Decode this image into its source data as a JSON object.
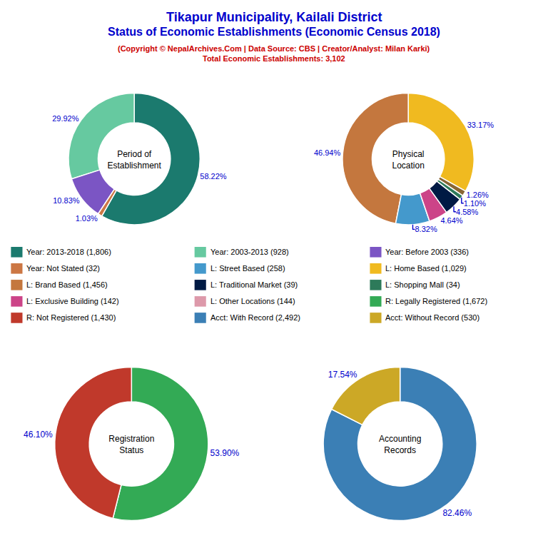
{
  "title": [
    "Tikapur Municipality, Kailali District",
    "Status of Economic Establishments (Economic Census 2018)"
  ],
  "title_color": "#0000CC",
  "subtitle": [
    "(Copyright © NepalArchives.Com | Data Source: CBS | Creator/Analyst: Milan Karki)",
    "Total Economic Establishments: 3,102"
  ],
  "subtitle_color": "#CC0000",
  "chart_data": [
    {
      "type": "pie",
      "title": "Period of\nEstablishment",
      "values": [
        58.22,
        29.92,
        10.83,
        1.03
      ],
      "colors": [
        "#1B7A6E",
        "#66C9A0",
        "#7B55C4",
        "#CC7744"
      ],
      "value_labels": [
        "58.22%",
        "29.92%",
        "10.83%",
        "1.03%"
      ],
      "data_labels": true,
      "label_color": "#0000CC"
    },
    {
      "type": "pie",
      "title": "Physical\nLocation",
      "values": [
        33.17,
        46.94,
        8.32,
        4.64,
        4.58,
        1.1,
        1.26
      ],
      "colors": [
        "#F0BA20",
        "#C4773E",
        "#4499CC",
        "#CC4488",
        "#001A44",
        "#2D7A5A",
        "#886633"
      ],
      "value_labels": [
        "33.17%",
        "46.94%",
        "8.32%",
        "4.64%",
        "4.58%",
        "1.10%",
        "1.26%"
      ],
      "data_labels": true,
      "label_color": "#0000CC"
    },
    {
      "type": "pie",
      "title": "Registration\nStatus",
      "values": [
        53.9,
        46.1
      ],
      "colors": [
        "#33AA55",
        "#C0392B"
      ],
      "value_labels": [
        "53.90%",
        "46.10%"
      ],
      "data_labels": true,
      "label_color": "#0000CC"
    },
    {
      "type": "pie",
      "title": "Accounting\nRecords",
      "values": [
        82.46,
        17.54
      ],
      "colors": [
        "#3B7FB5",
        "#CCA826"
      ],
      "value_labels": [
        "82.46%",
        "17.54%"
      ],
      "data_labels": true,
      "label_color": "#0000CC"
    }
  ],
  "legend_entries": [
    [
      {
        "label": "Year: 2013-2018 (1,806)",
        "color": "#1B7A6E"
      },
      {
        "label": "Year: 2003-2013 (928)",
        "color": "#66C9A0"
      },
      {
        "label": "Year: Before 2003 (336)",
        "color": "#7B55C4"
      }
    ],
    [
      {
        "label": "Year: Not Stated (32)",
        "color": "#CC7744"
      },
      {
        "label": "L: Street Based (258)",
        "color": "#4499CC"
      },
      {
        "label": "L: Home Based (1,029)",
        "color": "#F0BA20"
      }
    ],
    [
      {
        "label": "L: Brand Based (1,456)",
        "color": "#C4773E"
      },
      {
        "label": "L: Traditional Market (39)",
        "color": "#001A44"
      },
      {
        "label": "L: Shopping Mall (34)",
        "color": "#2D7A5A"
      }
    ],
    [
      {
        "label": "L: Exclusive Building (142)",
        "color": "#CC4488"
      },
      {
        "label": "L: Other Locations (144)",
        "color": "#DD99AA"
      },
      {
        "label": "R: Legally Registered (1,672)",
        "color": "#33AA55"
      }
    ],
    [
      {
        "label": "R: Not Registered (1,430)",
        "color": "#C0392B"
      },
      {
        "label": "Acct: With Record (2,492)",
        "color": "#3B7FB5"
      },
      {
        "label": "Acct: Without Record (530)",
        "color": "#CCA826"
      }
    ]
  ]
}
